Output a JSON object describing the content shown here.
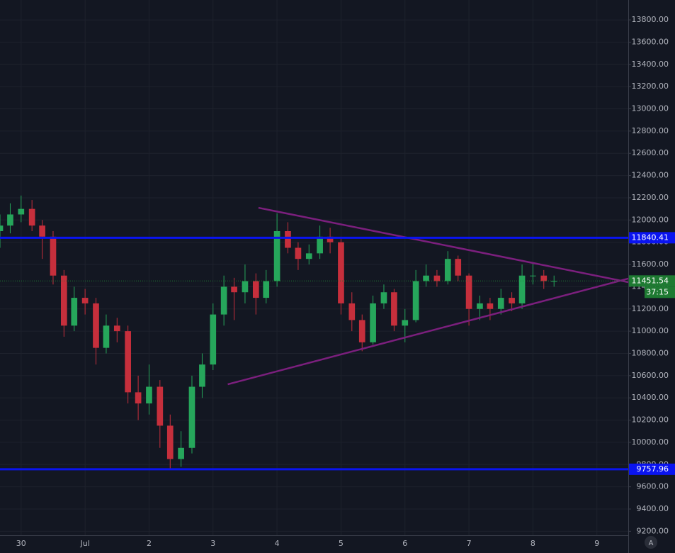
{
  "chart_data": {
    "type": "candlestick",
    "x": [
      -0.33,
      -0.17,
      0,
      0.17,
      0.33,
      0.5,
      0.67,
      0.83,
      1,
      1.17,
      1.33,
      1.5,
      1.67,
      1.83,
      2,
      2.17,
      2.33,
      2.5,
      2.67,
      2.83,
      3,
      3.17,
      3.33,
      3.5,
      3.67,
      3.83,
      4,
      4.17,
      4.33,
      4.5,
      4.67,
      4.83,
      5,
      5.17,
      5.33,
      5.5,
      5.67,
      5.83,
      6,
      6.17,
      6.33,
      6.5,
      6.67,
      6.83,
      7,
      7.17,
      7.33,
      7.5,
      7.67,
      7.83,
      8,
      8.17,
      8.33
    ],
    "open": [
      11900,
      11950,
      12050,
      12100,
      11950,
      11850,
      11500,
      11050,
      11300,
      11250,
      10850,
      11050,
      11000,
      10450,
      10350,
      10500,
      10150,
      9850,
      9950,
      10500,
      10700,
      11150,
      11400,
      11350,
      11450,
      11300,
      11450,
      11900,
      11750,
      11650,
      11700,
      11850,
      11800,
      11250,
      11100,
      10900,
      11250,
      11350,
      11050,
      11100,
      11450,
      11500,
      11450,
      11650,
      11500,
      11200,
      11250,
      11200,
      11300,
      11250,
      11500,
      11500,
      11450
    ],
    "high": [
      12050,
      12150,
      12220,
      12180,
      12000,
      11900,
      11550,
      11400,
      11380,
      11300,
      11150,
      11120,
      11050,
      10600,
      10700,
      10560,
      10250,
      10100,
      10600,
      10800,
      11250,
      11500,
      11480,
      11600,
      11520,
      11550,
      12060,
      11980,
      11800,
      11780,
      11950,
      11930,
      11850,
      11350,
      11150,
      11320,
      11420,
      11380,
      11200,
      11550,
      11600,
      11550,
      11720,
      11680,
      11520,
      11320,
      11300,
      11380,
      11350,
      11600,
      11620,
      11550,
      11500
    ],
    "low": [
      11750,
      11880,
      11980,
      11900,
      11650,
      11420,
      10950,
      11000,
      11150,
      10700,
      10800,
      10900,
      10350,
      10200,
      10250,
      9950,
      9760,
      9780,
      9900,
      10400,
      10650,
      11050,
      11100,
      11250,
      11150,
      11250,
      11400,
      11700,
      11550,
      11600,
      11650,
      11700,
      11150,
      11000,
      10820,
      10880,
      11200,
      11000,
      10900,
      11080,
      11400,
      11400,
      11420,
      11450,
      11050,
      11100,
      11100,
      11150,
      11180,
      11200,
      11420,
      11380,
      11400
    ],
    "close": [
      11950,
      12050,
      12100,
      11950,
      11850,
      11500,
      11050,
      11300,
      11250,
      10850,
      11050,
      11000,
      10450,
      10350,
      10500,
      10150,
      9850,
      9950,
      10500,
      10700,
      11150,
      11400,
      11350,
      11450,
      11300,
      11450,
      11900,
      11750,
      11650,
      11700,
      11850,
      11800,
      11250,
      11100,
      10900,
      11250,
      11350,
      11050,
      11100,
      11450,
      11500,
      11450,
      11650,
      11500,
      11200,
      11250,
      11200,
      11300,
      11250,
      11500,
      11500,
      11450,
      11451
    ],
    "up_color": "#26a65b",
    "down_color": "#c62f3c",
    "xlim": [
      -0.33,
      9.49
    ],
    "xticks": [
      {
        "value": 0,
        "label": "30"
      },
      {
        "value": 1,
        "label": "Jul"
      },
      {
        "value": 2,
        "label": "2"
      },
      {
        "value": 3,
        "label": "3"
      },
      {
        "value": 4,
        "label": "4"
      },
      {
        "value": 5,
        "label": "5"
      },
      {
        "value": 6,
        "label": "6"
      },
      {
        "value": 7,
        "label": "7"
      },
      {
        "value": 8,
        "label": "8"
      },
      {
        "value": 9,
        "label": "9"
      }
    ],
    "ylim": [
      9164,
      13979
    ],
    "yticks": [
      {
        "value": 9200,
        "label": "9200.00"
      },
      {
        "value": 9400,
        "label": "9400.00"
      },
      {
        "value": 9600,
        "label": "9600.00"
      },
      {
        "value": 9800,
        "label": "9800.00"
      },
      {
        "value": 10000,
        "label": "10000.00"
      },
      {
        "value": 10200,
        "label": "10200.00"
      },
      {
        "value": 10400,
        "label": "10400.00"
      },
      {
        "value": 10600,
        "label": "10600.00"
      },
      {
        "value": 10800,
        "label": "10800.00"
      },
      {
        "value": 11000,
        "label": "11000.00"
      },
      {
        "value": 11200,
        "label": "11200.00"
      },
      {
        "value": 11400,
        "label": "11400.00"
      },
      {
        "value": 11600,
        "label": "11600.00"
      },
      {
        "value": 11800,
        "label": "11800.00"
      },
      {
        "value": 12000,
        "label": "12000.00"
      },
      {
        "value": 12200,
        "label": "12200.00"
      },
      {
        "value": 12400,
        "label": "12400.00"
      },
      {
        "value": 12600,
        "label": "12600.00"
      },
      {
        "value": 12800,
        "label": "12800.00"
      },
      {
        "value": 13000,
        "label": "13000.00"
      },
      {
        "value": 13200,
        "label": "13200.00"
      },
      {
        "value": 13400,
        "label": "13400.00"
      },
      {
        "value": 13600,
        "label": "13600.00"
      },
      {
        "value": 13800,
        "label": "13800.00"
      }
    ],
    "grid": true,
    "hlines": [
      {
        "value": 11840.41,
        "color": "#0a14f0"
      },
      {
        "value": 9757.96,
        "color": "#0a14f0"
      }
    ],
    "trendlines": [
      {
        "x": [
          3.71,
          9.49
        ],
        "y": [
          12110,
          11441
        ],
        "color": "#7b1f7d"
      },
      {
        "x": [
          3.23,
          9.49
        ],
        "y": [
          10522,
          11473
        ],
        "color": "#7b1f7d"
      }
    ],
    "last_price": 11451.54,
    "last_price_color": "#1e7a32",
    "countdown": "37:15"
  },
  "ui": {
    "auto_button": "A"
  }
}
